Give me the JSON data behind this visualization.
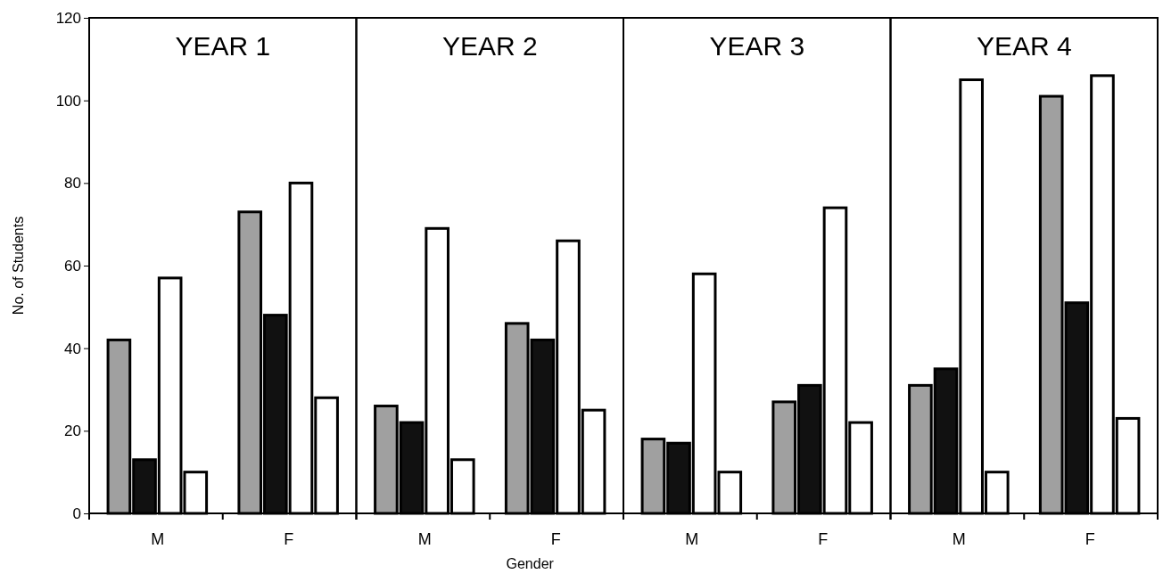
{
  "chart_data": [
    {
      "type": "bar",
      "title": "YEAR 1",
      "ylabel": "No. of Students",
      "categories": [
        "M",
        "F"
      ],
      "ylim": [
        0,
        120
      ],
      "yticks": [
        0,
        20,
        40,
        60,
        80,
        100,
        120
      ],
      "series": [
        {
          "color": "#a0a0a0",
          "values": [
            42,
            73
          ]
        },
        {
          "color": "#111111",
          "values": [
            13,
            48
          ]
        },
        {
          "color": "#ffffff",
          "values": [
            57,
            80
          ]
        },
        {
          "color": "#ffffff",
          "values": [
            10,
            28
          ]
        }
      ]
    },
    {
      "type": "bar",
      "title": "YEAR 2",
      "xlabel": "Gender",
      "categories": [
        "M",
        "F"
      ],
      "ylim": [
        0,
        120
      ],
      "yticks": [
        0,
        20,
        40,
        60,
        80,
        100,
        120
      ],
      "tick_labels": "x",
      "series": [
        {
          "color": "#a0a0a0",
          "values": [
            26,
            46
          ]
        },
        {
          "color": "#111111",
          "values": [
            22,
            42
          ]
        },
        {
          "color": "#ffffff",
          "values": [
            69,
            66
          ]
        },
        {
          "color": "#ffffff",
          "values": [
            13,
            25
          ]
        }
      ]
    },
    {
      "type": "bar",
      "title": "YEAR 3",
      "categories": [
        "M",
        "F"
      ],
      "ylim": [
        0,
        120
      ],
      "yticks": [
        0,
        20,
        40,
        60,
        80,
        100,
        120
      ],
      "tick_labels": "x",
      "series": [
        {
          "color": "#a0a0a0",
          "values": [
            18,
            27
          ]
        },
        {
          "color": "#111111",
          "values": [
            17,
            31
          ]
        },
        {
          "color": "#ffffff",
          "values": [
            58,
            74
          ]
        },
        {
          "color": "#ffffff",
          "values": [
            10,
            22
          ]
        }
      ]
    },
    {
      "type": "bar",
      "title": "YEAR 4",
      "categories": [
        "M",
        "F"
      ],
      "ylim": [
        0,
        120
      ],
      "yticks": [
        0,
        20,
        40,
        60,
        80,
        100,
        120
      ],
      "tick_labels": "x",
      "series": [
        {
          "color": "#a0a0a0",
          "values": [
            31,
            101
          ]
        },
        {
          "color": "#111111",
          "values": [
            35,
            51
          ]
        },
        {
          "color": "#ffffff",
          "values": [
            105,
            106
          ]
        },
        {
          "color": "#ffffff",
          "values": [
            10,
            23
          ]
        }
      ]
    }
  ]
}
